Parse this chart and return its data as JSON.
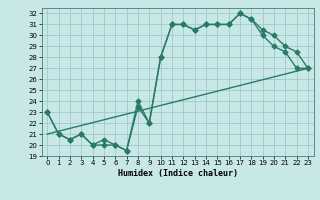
{
  "title": "",
  "xlabel": "Humidex (Indice chaleur)",
  "ylabel": "",
  "bg_color": "#c8e8e8",
  "grid_color": "#a0c8c8",
  "line_color": "#2a7a6a",
  "xlim": [
    -0.5,
    23.5
  ],
  "ylim": [
    19,
    32.5
  ],
  "xticks": [
    0,
    1,
    2,
    3,
    4,
    5,
    6,
    7,
    8,
    9,
    10,
    11,
    12,
    13,
    14,
    15,
    16,
    17,
    18,
    19,
    20,
    21,
    22,
    23
  ],
  "yticks": [
    19,
    20,
    21,
    22,
    23,
    24,
    25,
    26,
    27,
    28,
    29,
    30,
    31,
    32
  ],
  "line1_x": [
    0,
    1,
    2,
    3,
    4,
    5,
    6,
    7,
    8,
    9,
    10,
    11,
    12,
    13,
    14,
    15,
    16,
    17,
    18,
    19,
    20,
    21,
    22,
    23
  ],
  "line1_y": [
    23,
    21,
    20.5,
    21,
    20,
    20,
    20,
    19.5,
    23.5,
    22,
    28,
    31,
    31,
    30.5,
    31,
    31,
    31,
    32,
    31.5,
    30,
    29,
    28.5,
    27,
    27
  ],
  "line2_x": [
    0,
    1,
    2,
    3,
    4,
    5,
    6,
    7,
    8,
    9,
    10,
    11,
    12,
    13,
    14,
    15,
    16,
    17,
    18,
    19,
    20,
    21,
    22,
    23
  ],
  "line2_y": [
    23,
    21,
    20.5,
    21,
    20,
    20.5,
    20,
    19.5,
    24,
    22,
    28,
    31,
    31,
    30.5,
    31,
    31,
    31,
    32,
    31.5,
    30.5,
    30,
    29,
    28.5,
    27
  ],
  "line3_x": [
    0,
    23
  ],
  "line3_y": [
    21,
    27
  ],
  "marker_size": 2.5,
  "linewidth": 1.0
}
